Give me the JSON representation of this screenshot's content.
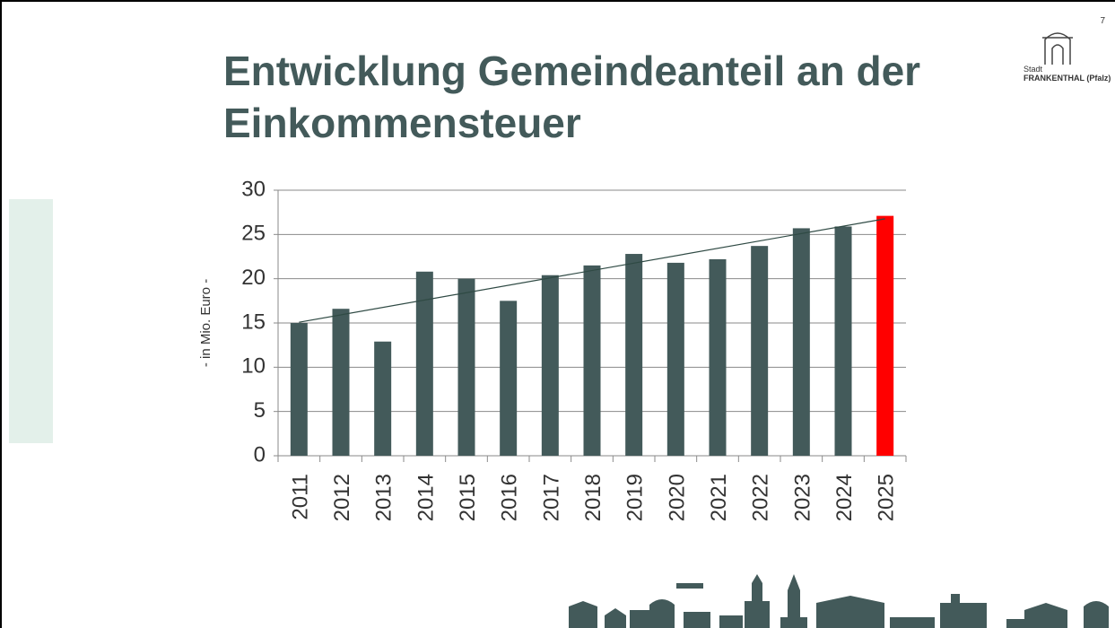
{
  "slide": {
    "page_number": "7",
    "logo_top": "Stadt",
    "logo_bottom": "FRANKENTHAL (Pfalz)"
  },
  "chart_data": {
    "type": "bar",
    "title": "Entwicklung Gemeindeanteil an der Einkommensteuer",
    "y_label": "- in Mio. Euro -",
    "categories": [
      "2011",
      "2012",
      "2013",
      "2014",
      "2015",
      "2016",
      "2017",
      "2018",
      "2019",
      "2020",
      "2021",
      "2022",
      "2023",
      "2024",
      "2025"
    ],
    "values": [
      15.0,
      16.6,
      12.9,
      20.8,
      20.0,
      17.5,
      20.4,
      21.5,
      22.8,
      21.8,
      22.2,
      23.7,
      25.7,
      25.9,
      27.1
    ],
    "colors": [
      "#435a5a",
      "#435a5a",
      "#435a5a",
      "#435a5a",
      "#435a5a",
      "#435a5a",
      "#435a5a",
      "#435a5a",
      "#435a5a",
      "#435a5a",
      "#435a5a",
      "#435a5a",
      "#435a5a",
      "#435a5a",
      "#ff0000"
    ],
    "ylim": [
      0,
      30
    ],
    "yticks": [
      0,
      5,
      10,
      15,
      20,
      25,
      30
    ],
    "grid": true,
    "trendline": {
      "type": "linear",
      "color": "#2f4a44"
    }
  }
}
